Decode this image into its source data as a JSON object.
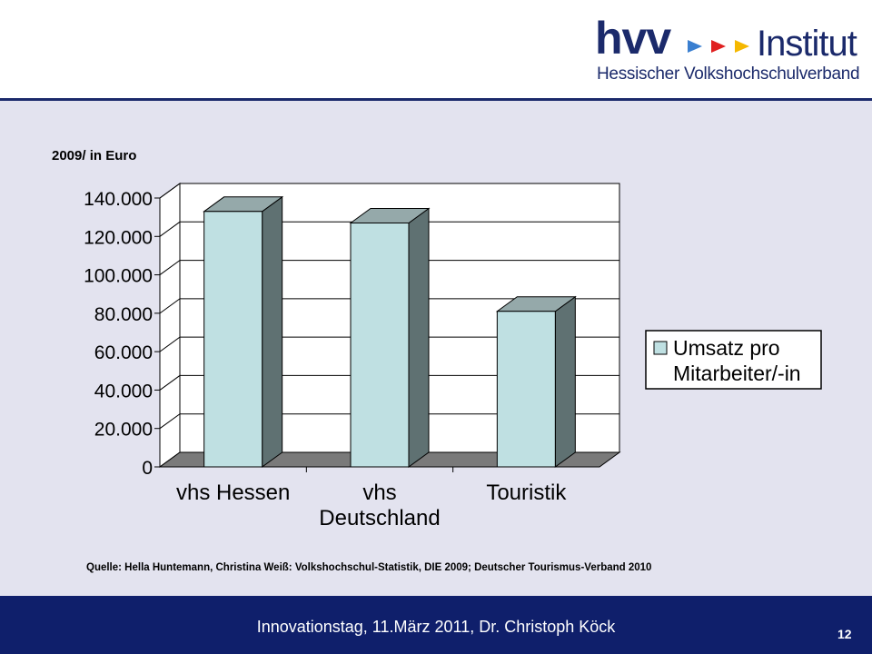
{
  "logo": {
    "brand": "hvv",
    "word": "Institut",
    "subtitle": "Hessischer Volkshochschulverband",
    "arrow_colors": [
      "#3a7fd0",
      "#e02020",
      "#f5b800"
    ]
  },
  "unit_label": "2009/ in Euro",
  "source": "Quelle: Hella Huntemann, Christina Weiß: Volkshochschul-Statistik, DIE 2009; Deutscher Tourismus-Verband 2010",
  "footer": {
    "text": "Innovationstag, 11.März 2011, Dr. Christoph Köck",
    "page": "12"
  },
  "chart_data": {
    "type": "bar",
    "categories": [
      [
        "vhs Hessen"
      ],
      [
        "vhs",
        "Deutschland"
      ],
      [
        "Touristik"
      ]
    ],
    "series": [
      {
        "name": "Umsatz pro Mitarbeiter/-in",
        "name_lines": [
          "Umsatz pro",
          "Mitarbeiter/-in"
        ],
        "values": [
          133000,
          127000,
          81000
        ]
      }
    ],
    "ylim": [
      0,
      140000
    ],
    "yticks": [
      0,
      20000,
      40000,
      60000,
      80000,
      100000,
      120000,
      140000
    ],
    "ytick_labels": [
      "0",
      "20.000",
      "40.000",
      "60.000",
      "80.000",
      "100.000",
      "120.000",
      "140.000"
    ],
    "grid": true,
    "legend_position": "right",
    "colors": {
      "bar_front": "#bfe0e2",
      "bar_side": "#5f7172",
      "bar_top": "#95a9aa",
      "floor": "#7a7a7a",
      "plot_bg": "#ffffff"
    }
  }
}
